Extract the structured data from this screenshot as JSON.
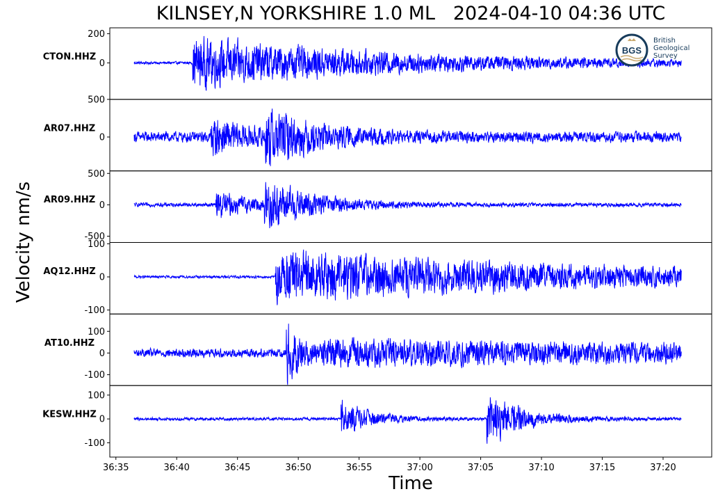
{
  "title": "KILNSEY,N YORKSHIRE 1.0 ML   2024-04-10 04:36 UTC",
  "ylabel": "Velocity nm/s",
  "xlabel": "Time",
  "logo": {
    "badge": "BGS",
    "lines": [
      "British",
      "Geological",
      "Survey"
    ]
  },
  "colors": {
    "trace": "#0000ff",
    "axis": "#000000",
    "logo": "#173b5b",
    "logo_accent": "#c9a96e"
  },
  "chart_data": {
    "type": "line",
    "title": "KILNSEY,N YORKSHIRE 1.0 ML   2024-04-10 04:36 UTC",
    "xlabel": "Time",
    "ylabel": "Velocity nm/s",
    "xlim": [
      "36:34.5",
      "37:24.0"
    ],
    "data_xrange": [
      "36:36.5",
      "37:21.5"
    ],
    "xticks": [
      "36:35",
      "36:40",
      "36:45",
      "36:50",
      "36:55",
      "37:00",
      "37:05",
      "37:10",
      "37:15",
      "37:20"
    ],
    "grid": false,
    "panels": [
      {
        "name": "CTON.HHZ",
        "ylim": [
          -250,
          240
        ],
        "yticks": [
          200,
          0
        ],
        "yticklabels": [
          "200",
          "0"
        ],
        "noise": 12,
        "events": [
          {
            "t": "36:41.3",
            "peak": 215,
            "decay": 18
          }
        ]
      },
      {
        "name": "AR07.HHZ",
        "ylim": [
          -450,
          500
        ],
        "yticks": [
          500,
          0
        ],
        "yticklabels": [
          "500",
          "0"
        ],
        "noise": 90,
        "events": [
          {
            "t": "36:42.8",
            "peak": 300,
            "decay": 3
          },
          {
            "t": "36:47.3",
            "peak": 490,
            "decay": 4
          }
        ]
      },
      {
        "name": "AR09.HHZ",
        "ylim": [
          -600,
          540
        ],
        "yticks": [
          500,
          0,
          -500
        ],
        "yticklabels": [
          "500",
          "0",
          "-500"
        ],
        "noise": 40,
        "events": [
          {
            "t": "36:43.2",
            "peak": 280,
            "decay": 3
          },
          {
            "t": "36:47.2",
            "peak": 550,
            "decay": 4
          }
        ]
      },
      {
        "name": "AQ12.HHZ",
        "ylim": [
          -112,
          104
        ],
        "yticks": [
          100,
          0,
          -100
        ],
        "yticklabels": [
          "100",
          "0",
          "-100"
        ],
        "noise": 5,
        "events": [
          {
            "t": "36:48.1",
            "peak": 100,
            "decay": 30
          }
        ]
      },
      {
        "name": "AT10.HHZ",
        "ylim": [
          -150,
          180
        ],
        "yticks": [
          100,
          0,
          -100
        ],
        "yticklabels": [
          "100",
          "0",
          "-100"
        ],
        "noise": 25,
        "events": [
          {
            "t": "36:49.0",
            "peak": 170,
            "decay": 1.5
          },
          {
            "t": "36:52.0",
            "peak": 70,
            "decay": 40
          }
        ]
      },
      {
        "name": "KESW.HHZ",
        "ylim": [
          -160,
          140
        ],
        "yticks": [
          100,
          0,
          -100
        ],
        "yticklabels": [
          "100",
          "0",
          "-100"
        ],
        "noise": 8,
        "events": [
          {
            "t": "36:53.5",
            "peak": 95,
            "decay": 2.5
          },
          {
            "t": "37:05.5",
            "peak": 140,
            "decay": 3
          }
        ]
      }
    ]
  }
}
